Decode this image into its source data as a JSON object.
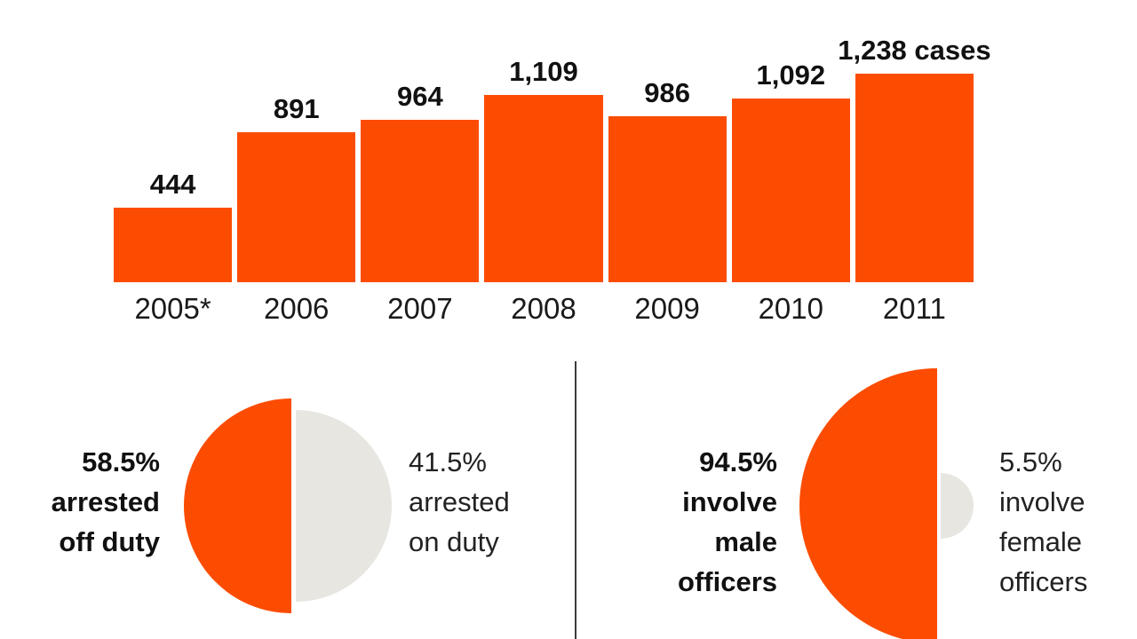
{
  "colors": {
    "accent": "#fc4c02",
    "muted": "#e8e6e1",
    "text": "#111111",
    "divider": "#3c3c3c"
  },
  "chart_data": [
    {
      "type": "bar",
      "title": "",
      "categories": [
        "2005*",
        "2006",
        "2007",
        "2008",
        "2009",
        "2010",
        "2011"
      ],
      "values": [
        444,
        891,
        964,
        1109,
        986,
        1092,
        1238
      ],
      "value_labels": [
        "444",
        "891",
        "964",
        "1,109",
        "986",
        "1,092",
        "1,238 cases"
      ],
      "xlabel": "",
      "ylabel": "",
      "ylim": [
        0,
        1238
      ],
      "grid": false,
      "legend": false,
      "bar_color": "#fc4c02"
    },
    {
      "type": "pie",
      "title": "",
      "slices": [
        {
          "label": "58.5% arrested off duty",
          "value": 58.5,
          "color": "#fc4c02"
        },
        {
          "label": "41.5% arrested on duty",
          "value": 41.5,
          "color": "#e8e6e1"
        }
      ],
      "layout": "opposing-half-circles"
    },
    {
      "type": "pie",
      "title": "",
      "slices": [
        {
          "label": "94.5% involve male officers",
          "value": 94.5,
          "color": "#fc4c02"
        },
        {
          "label": "5.5% involve female officers",
          "value": 5.5,
          "color": "#e8e6e1"
        }
      ],
      "layout": "opposing-half-circles"
    }
  ],
  "labels": {
    "left_pair": {
      "primary": [
        "58.5%",
        "arrested",
        "off duty"
      ],
      "secondary": [
        "41.5%",
        "arrested",
        "on duty"
      ]
    },
    "right_pair": {
      "primary": [
        "94.5%",
        "involve",
        "male",
        "officers"
      ],
      "secondary": [
        "5.5%",
        "involve",
        "female",
        "officers"
      ]
    }
  }
}
